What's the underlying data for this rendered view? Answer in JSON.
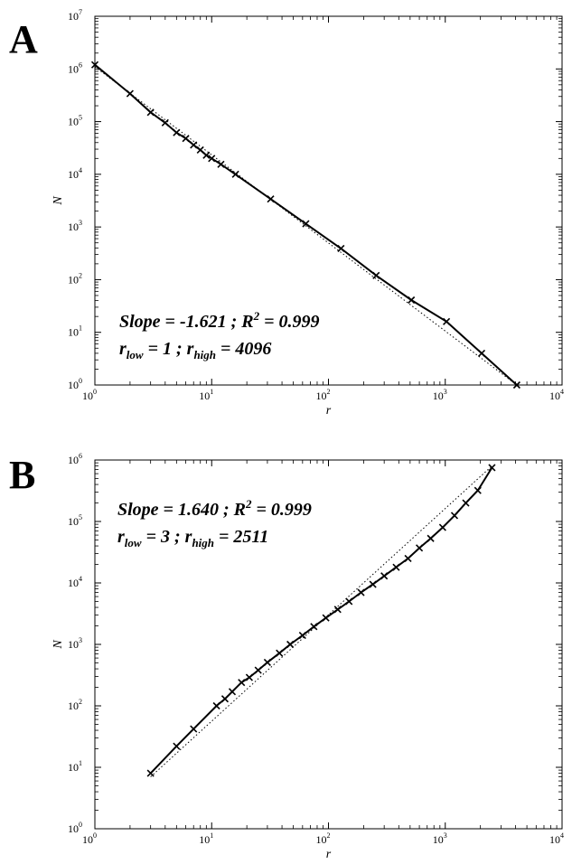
{
  "colors": {
    "line": "#000000",
    "fit": "#000000",
    "background": "#ffffff"
  },
  "chart_data": [
    {
      "panel": "A",
      "type": "line",
      "xscale": "log",
      "yscale": "log",
      "xlabel": "r",
      "ylabel": "N",
      "xlim": [
        1,
        10000
      ],
      "ylim": [
        1,
        10000000
      ],
      "xticks": [
        1,
        10,
        100,
        1000,
        10000
      ],
      "yticks": [
        1,
        10,
        100,
        1000,
        10000,
        100000,
        1000000,
        10000000
      ],
      "tick_base": "10",
      "xtick_exponents": [
        "0",
        "1",
        "2",
        "3",
        "4"
      ],
      "ytick_exponents": [
        "0",
        "1",
        "2",
        "3",
        "4",
        "5",
        "6",
        "7"
      ],
      "grid": false,
      "markers": "x",
      "fit_line": {
        "style": "dotted",
        "from": [
          1,
          1100000
        ],
        "to": [
          4096,
          1
        ]
      },
      "annotation": {
        "line1_prefix": "Slope = -1.621 ; R",
        "line1_sup": "2",
        "line1_suffix": " = 0.999",
        "line2_r1": "r",
        "line2_sub1": "low",
        "line2_mid": " = 1 ; r",
        "line2_sub2": "high",
        "line2_end": " = 4096"
      },
      "x": [
        1,
        2,
        3,
        4,
        5,
        6,
        7,
        8,
        9,
        10,
        12,
        16,
        32,
        64,
        128,
        256,
        512,
        1024,
        2048,
        4096
      ],
      "y": [
        1200000,
        340000,
        150000,
        95000,
        62000,
        48000,
        36000,
        29000,
        23000,
        20000,
        15500,
        10000,
        3400,
        1150,
        390,
        120,
        41,
        16,
        4,
        1
      ]
    },
    {
      "panel": "B",
      "type": "line",
      "xscale": "log",
      "yscale": "log",
      "xlabel": "r",
      "ylabel": "N",
      "xlim": [
        1,
        10000
      ],
      "ylim": [
        1,
        1000000
      ],
      "xticks": [
        1,
        10,
        100,
        1000,
        10000
      ],
      "yticks": [
        1,
        10,
        100,
        1000,
        10000,
        100000,
        1000000
      ],
      "tick_base": "10",
      "xtick_exponents": [
        "0",
        "1",
        "2",
        "3",
        "4"
      ],
      "ytick_exponents": [
        "0",
        "1",
        "2",
        "3",
        "4",
        "5",
        "6"
      ],
      "grid": false,
      "markers": "x",
      "fit_line": {
        "style": "dotted",
        "from": [
          3,
          7
        ],
        "to": [
          2511,
          800000
        ]
      },
      "annotation": {
        "line1_prefix": "Slope = 1.640 ; R",
        "line1_sup": "2",
        "line1_suffix": " = 0.999",
        "line2_r1": "r",
        "line2_sub1": "low",
        "line2_mid": " = 3 ; r",
        "line2_sub2": "high",
        "line2_end": " = 2511"
      },
      "x": [
        3,
        5,
        7,
        11,
        13,
        15,
        18,
        21,
        25,
        30,
        38,
        47,
        60,
        75,
        95,
        120,
        150,
        190,
        240,
        300,
        380,
        480,
        600,
        750,
        950,
        1200,
        1500,
        1900,
        2511
      ],
      "y": [
        8,
        22,
        42,
        100,
        130,
        170,
        240,
        290,
        380,
        510,
        720,
        1000,
        1400,
        1950,
        2700,
        3700,
        5000,
        7000,
        9500,
        13000,
        18000,
        25000,
        37000,
        53000,
        80000,
        125000,
        200000,
        320000,
        750000
      ]
    }
  ],
  "panels": [
    {
      "letter": "A"
    },
    {
      "letter": "B"
    }
  ]
}
